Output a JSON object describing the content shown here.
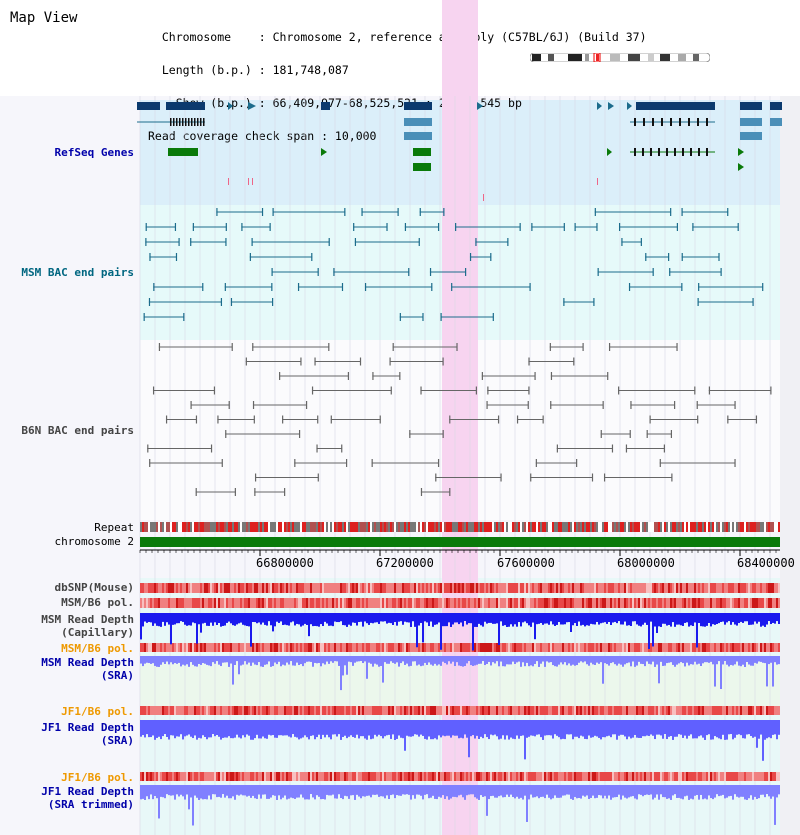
{
  "header": {
    "title": "Map View",
    "info_lines": [
      "  Chromosome    : Chromosome 2, reference assembly (C57BL/6J) (Build 37)",
      "  Length (b.p.) : 181,748,087",
      "    Show (b.p.) : 66,409,977-68,525,521 : 2,115,545 bp",
      "Read coverage check span : 10,000"
    ]
  },
  "tracks": {
    "refseq": "RefSeq Genes",
    "msm_bac": "MSM BAC end pairs",
    "b6n_bac": "B6N BAC end pairs",
    "repeat": "Repeat",
    "chromosome": "chromosome 2",
    "dbsnp": "dbSNP(Mouse)",
    "msm_b6_pol_1": "MSM/B6 pol.",
    "msm_depth_cap_1": "MSM Read Depth",
    "msm_depth_cap_2": "(Capillary)",
    "msm_b6_pol_2": "MSM/B6 pol.",
    "msm_depth_sra_1": "MSM Read Depth",
    "msm_depth_sra_2": "(SRA)",
    "jf1_b6_pol_1": "JF1/B6 pol.",
    "jf1_depth_sra_1": "JF1 Read Depth",
    "jf1_depth_sra_2": "(SRA)",
    "jf1_b6_pol_2": "JF1/B6 pol.",
    "jf1_depth_trim_1": "JF1 Read Depth",
    "jf1_depth_trim_2": "(SRA trimmed)"
  },
  "axis": {
    "ticks": [
      "66800000",
      "67200000",
      "67600000",
      "68000000",
      "68400000"
    ]
  },
  "colors": {
    "refseq_band": "#dbeffa",
    "msm_band": "#e6fafa",
    "highlight": "#f7d4f0",
    "navy": "#0b3a6e",
    "teal": "#1c6c8c",
    "green": "#0a7a0a",
    "depth_blue": "#1a1aee",
    "depth_light": "#7b7bff",
    "snp_red": "#e83030"
  }
}
